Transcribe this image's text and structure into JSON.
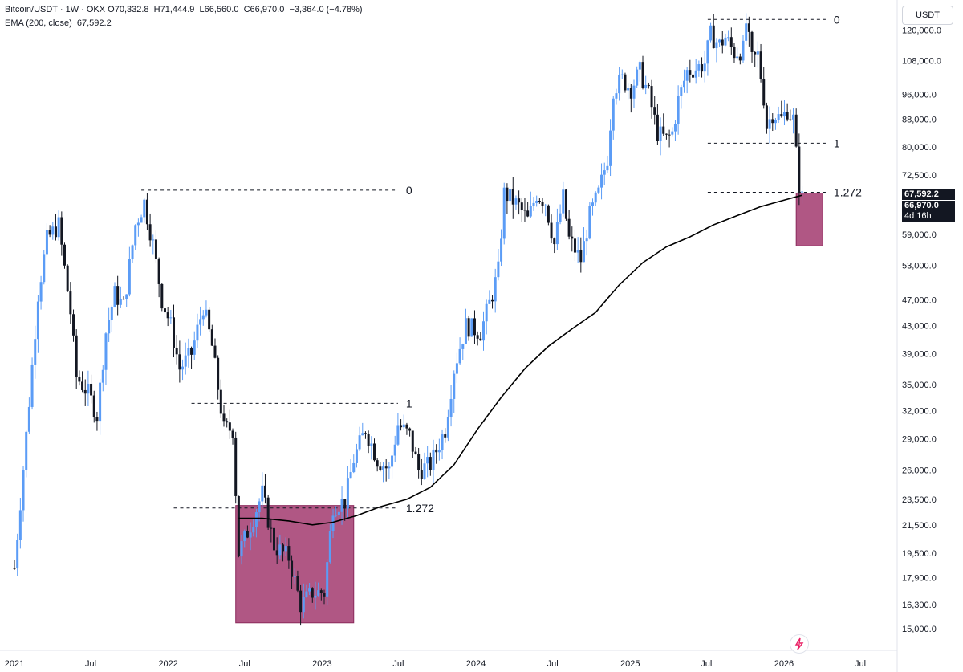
{
  "header": {
    "symbol": "Bitcoin/USDT · 1W · OKX",
    "ohlc": "O70,332.8  H71,444.9  L66,560.0  C66,970.0  −3,364.0 (−4.78%)",
    "indicator": "EMA (200, close)  67,592.2"
  },
  "currency_button": "USDT",
  "price_tags": {
    "ema": "67,592.2",
    "last": "66,970.0",
    "countdown": "4d 16h",
    "ema_color": "#131722",
    "last_color": "#131722"
  },
  "colors": {
    "up": "#5b9cf6",
    "down": "#131722",
    "ema": "#000000",
    "zone": "#a23a6e",
    "zone_stroke": "#8b2a5c",
    "bolt": "#e91e63"
  },
  "chart_data": {
    "type": "candlestick",
    "scale": "log",
    "ylim": [
      14000,
      126000
    ],
    "y_ticks": [
      "120,000.0",
      "108,000.0",
      "96,000.0",
      "88,000.0",
      "80,000.0",
      "72,500.0",
      "59,000.0",
      "53,000.0",
      "47,000.0",
      "43,000.0",
      "39,000.0",
      "35,000.0",
      "32,000.0",
      "29,000.0",
      "26,000.0",
      "23,500.0",
      "21,500.0",
      "19,500.0",
      "17,900.0",
      "16,300.0",
      "15,000.0"
    ],
    "y_tick_values": [
      120000,
      108000,
      96000,
      88000,
      80000,
      72500,
      59000,
      53000,
      47000,
      43000,
      39000,
      35000,
      32000,
      29000,
      26000,
      23500,
      21500,
      19500,
      17900,
      16300,
      15000
    ],
    "x_ticks": [
      "2021",
      "Jul",
      "2022",
      "Jul",
      "2023",
      "Jul",
      "2024",
      "Jul",
      "2025",
      "Jul",
      "2026",
      "Jul"
    ],
    "x_tick_dates": [
      "2021-01-01",
      "2021-07-01",
      "2022-01-01",
      "2022-07-01",
      "2023-01-01",
      "2023-07-01",
      "2024-01-01",
      "2024-07-01",
      "2025-01-01",
      "2025-07-01",
      "2026-01-01",
      "2026-07-01"
    ],
    "close_path": [
      [
        "2021-01-01",
        18500
      ],
      [
        "2021-02-05",
        33000
      ],
      [
        "2021-02-26",
        48000
      ],
      [
        "2021-03-19",
        58000
      ],
      [
        "2021-04-16",
        61000
      ],
      [
        "2021-05-14",
        45000
      ],
      [
        "2021-05-28",
        36000
      ],
      [
        "2021-06-25",
        34000
      ],
      [
        "2021-07-16",
        31500
      ],
      [
        "2021-08-06",
        42000
      ],
      [
        "2021-08-27",
        48000
      ],
      [
        "2021-09-17",
        46000
      ],
      [
        "2021-10-15",
        61000
      ],
      [
        "2021-11-05",
        66000
      ],
      [
        "2021-11-26",
        57000
      ],
      [
        "2021-12-17",
        47000
      ],
      [
        "2022-01-07",
        43000
      ],
      [
        "2022-01-28",
        37000
      ],
      [
        "2022-02-25",
        39000
      ],
      [
        "2022-03-25",
        46000
      ],
      [
        "2022-04-15",
        40000
      ],
      [
        "2022-05-13",
        30000
      ],
      [
        "2022-06-03",
        30000
      ],
      [
        "2022-06-17",
        19500
      ],
      [
        "2022-07-15",
        21500
      ],
      [
        "2022-08-12",
        24000
      ],
      [
        "2022-09-09",
        20000
      ],
      [
        "2022-10-14",
        19200
      ],
      [
        "2022-11-11",
        16300
      ],
      [
        "2022-12-09",
        17000
      ],
      [
        "2023-01-06",
        17000
      ],
      [
        "2023-01-27",
        23000
      ],
      [
        "2023-02-24",
        23300
      ],
      [
        "2023-03-17",
        27000
      ],
      [
        "2023-04-14",
        30000
      ],
      [
        "2023-05-12",
        27000
      ],
      [
        "2023-06-09",
        26000
      ],
      [
        "2023-06-30",
        30500
      ],
      [
        "2023-07-28",
        29300
      ],
      [
        "2023-08-18",
        26000
      ],
      [
        "2023-09-15",
        26500
      ],
      [
        "2023-10-20",
        30000
      ],
      [
        "2023-11-10",
        37000
      ],
      [
        "2023-12-08",
        43000
      ],
      [
        "2024-01-12",
        42000
      ],
      [
        "2024-02-09",
        48000
      ],
      [
        "2024-02-23",
        52000
      ],
      [
        "2024-03-08",
        68000
      ],
      [
        "2024-03-22",
        67000
      ],
      [
        "2024-04-12",
        65000
      ],
      [
        "2024-05-03",
        62000
      ],
      [
        "2024-05-24",
        68000
      ],
      [
        "2024-06-14",
        66000
      ],
      [
        "2024-07-05",
        57000
      ],
      [
        "2024-07-26",
        67000
      ],
      [
        "2024-08-09",
        58000
      ],
      [
        "2024-09-06",
        54000
      ],
      [
        "2024-09-27",
        63000
      ],
      [
        "2024-10-18",
        68000
      ],
      [
        "2024-11-08",
        77000
      ],
      [
        "2024-11-22",
        98000
      ],
      [
        "2024-12-13",
        101000
      ],
      [
        "2025-01-03",
        98000
      ],
      [
        "2025-01-24",
        104000
      ],
      [
        "2025-02-14",
        96000
      ],
      [
        "2025-03-07",
        84000
      ],
      [
        "2025-03-28",
        82000
      ],
      [
        "2025-04-11",
        84000
      ],
      [
        "2025-04-25",
        94000
      ],
      [
        "2025-05-16",
        104000
      ],
      [
        "2025-06-06",
        105000
      ],
      [
        "2025-06-27",
        107000
      ],
      [
        "2025-07-11",
        118000
      ],
      [
        "2025-08-01",
        114000
      ],
      [
        "2025-08-15",
        117000
      ],
      [
        "2025-09-05",
        111000
      ],
      [
        "2025-09-26",
        112000
      ],
      [
        "2025-10-03",
        123000
      ],
      [
        "2025-10-17",
        108000
      ],
      [
        "2025-10-31",
        110000
      ],
      [
        "2025-11-14",
        95000
      ],
      [
        "2025-11-21",
        86000
      ],
      [
        "2025-12-05",
        90000
      ],
      [
        "2025-12-26",
        88000
      ],
      [
        "2026-01-09",
        91000
      ],
      [
        "2026-01-23",
        88000
      ],
      [
        "2026-01-30",
        78000
      ],
      [
        "2026-02-06",
        70300
      ],
      [
        "2026-02-13",
        66970
      ]
    ],
    "ema_path": [
      [
        "2022-06-17",
        22000
      ],
      [
        "2022-08-12",
        22000
      ],
      [
        "2022-10-14",
        21800
      ],
      [
        "2022-12-09",
        21500
      ],
      [
        "2023-01-27",
        21700
      ],
      [
        "2023-03-24",
        22200
      ],
      [
        "2023-05-19",
        22900
      ],
      [
        "2023-07-21",
        23500
      ],
      [
        "2023-09-15",
        24500
      ],
      [
        "2023-11-10",
        26500
      ],
      [
        "2024-01-05",
        30000
      ],
      [
        "2024-03-01",
        33500
      ],
      [
        "2024-04-26",
        37000
      ],
      [
        "2024-06-21",
        40000
      ],
      [
        "2024-08-16",
        42500
      ],
      [
        "2024-10-11",
        45000
      ],
      [
        "2024-12-06",
        49500
      ],
      [
        "2025-01-31",
        53500
      ],
      [
        "2025-03-28",
        56500
      ],
      [
        "2025-05-23",
        58500
      ],
      [
        "2025-07-18",
        61000
      ],
      [
        "2025-09-12",
        63000
      ],
      [
        "2025-11-07",
        65000
      ],
      [
        "2026-01-02",
        66500
      ],
      [
        "2026-02-13",
        67592.2
      ]
    ],
    "fib_levels": [
      {
        "label": "0",
        "price": 68800,
        "from": "2021-10-29",
        "to": "2023-06-30"
      },
      {
        "label": "1",
        "price": 32800,
        "from": "2022-02-25",
        "to": "2023-06-30"
      },
      {
        "label": "1.272",
        "price": 22800,
        "from": "2022-01-14",
        "to": "2023-06-30"
      },
      {
        "label": "0",
        "price": 124500,
        "from": "2025-07-04",
        "to": "2026-04-10"
      },
      {
        "label": "1",
        "price": 81000,
        "from": "2025-07-04",
        "to": "2026-04-10"
      },
      {
        "label": "1.272",
        "price": 68300,
        "from": "2025-07-04",
        "to": "2026-04-10"
      }
    ],
    "zones": [
      {
        "from": "2022-06-10",
        "to": "2023-03-17",
        "high": 23000,
        "low": 15300
      },
      {
        "from": "2026-01-30",
        "to": "2026-04-03",
        "high": 68100,
        "low": 56700
      }
    ],
    "last_price": 66970.0,
    "ema_value": 67592.2
  }
}
